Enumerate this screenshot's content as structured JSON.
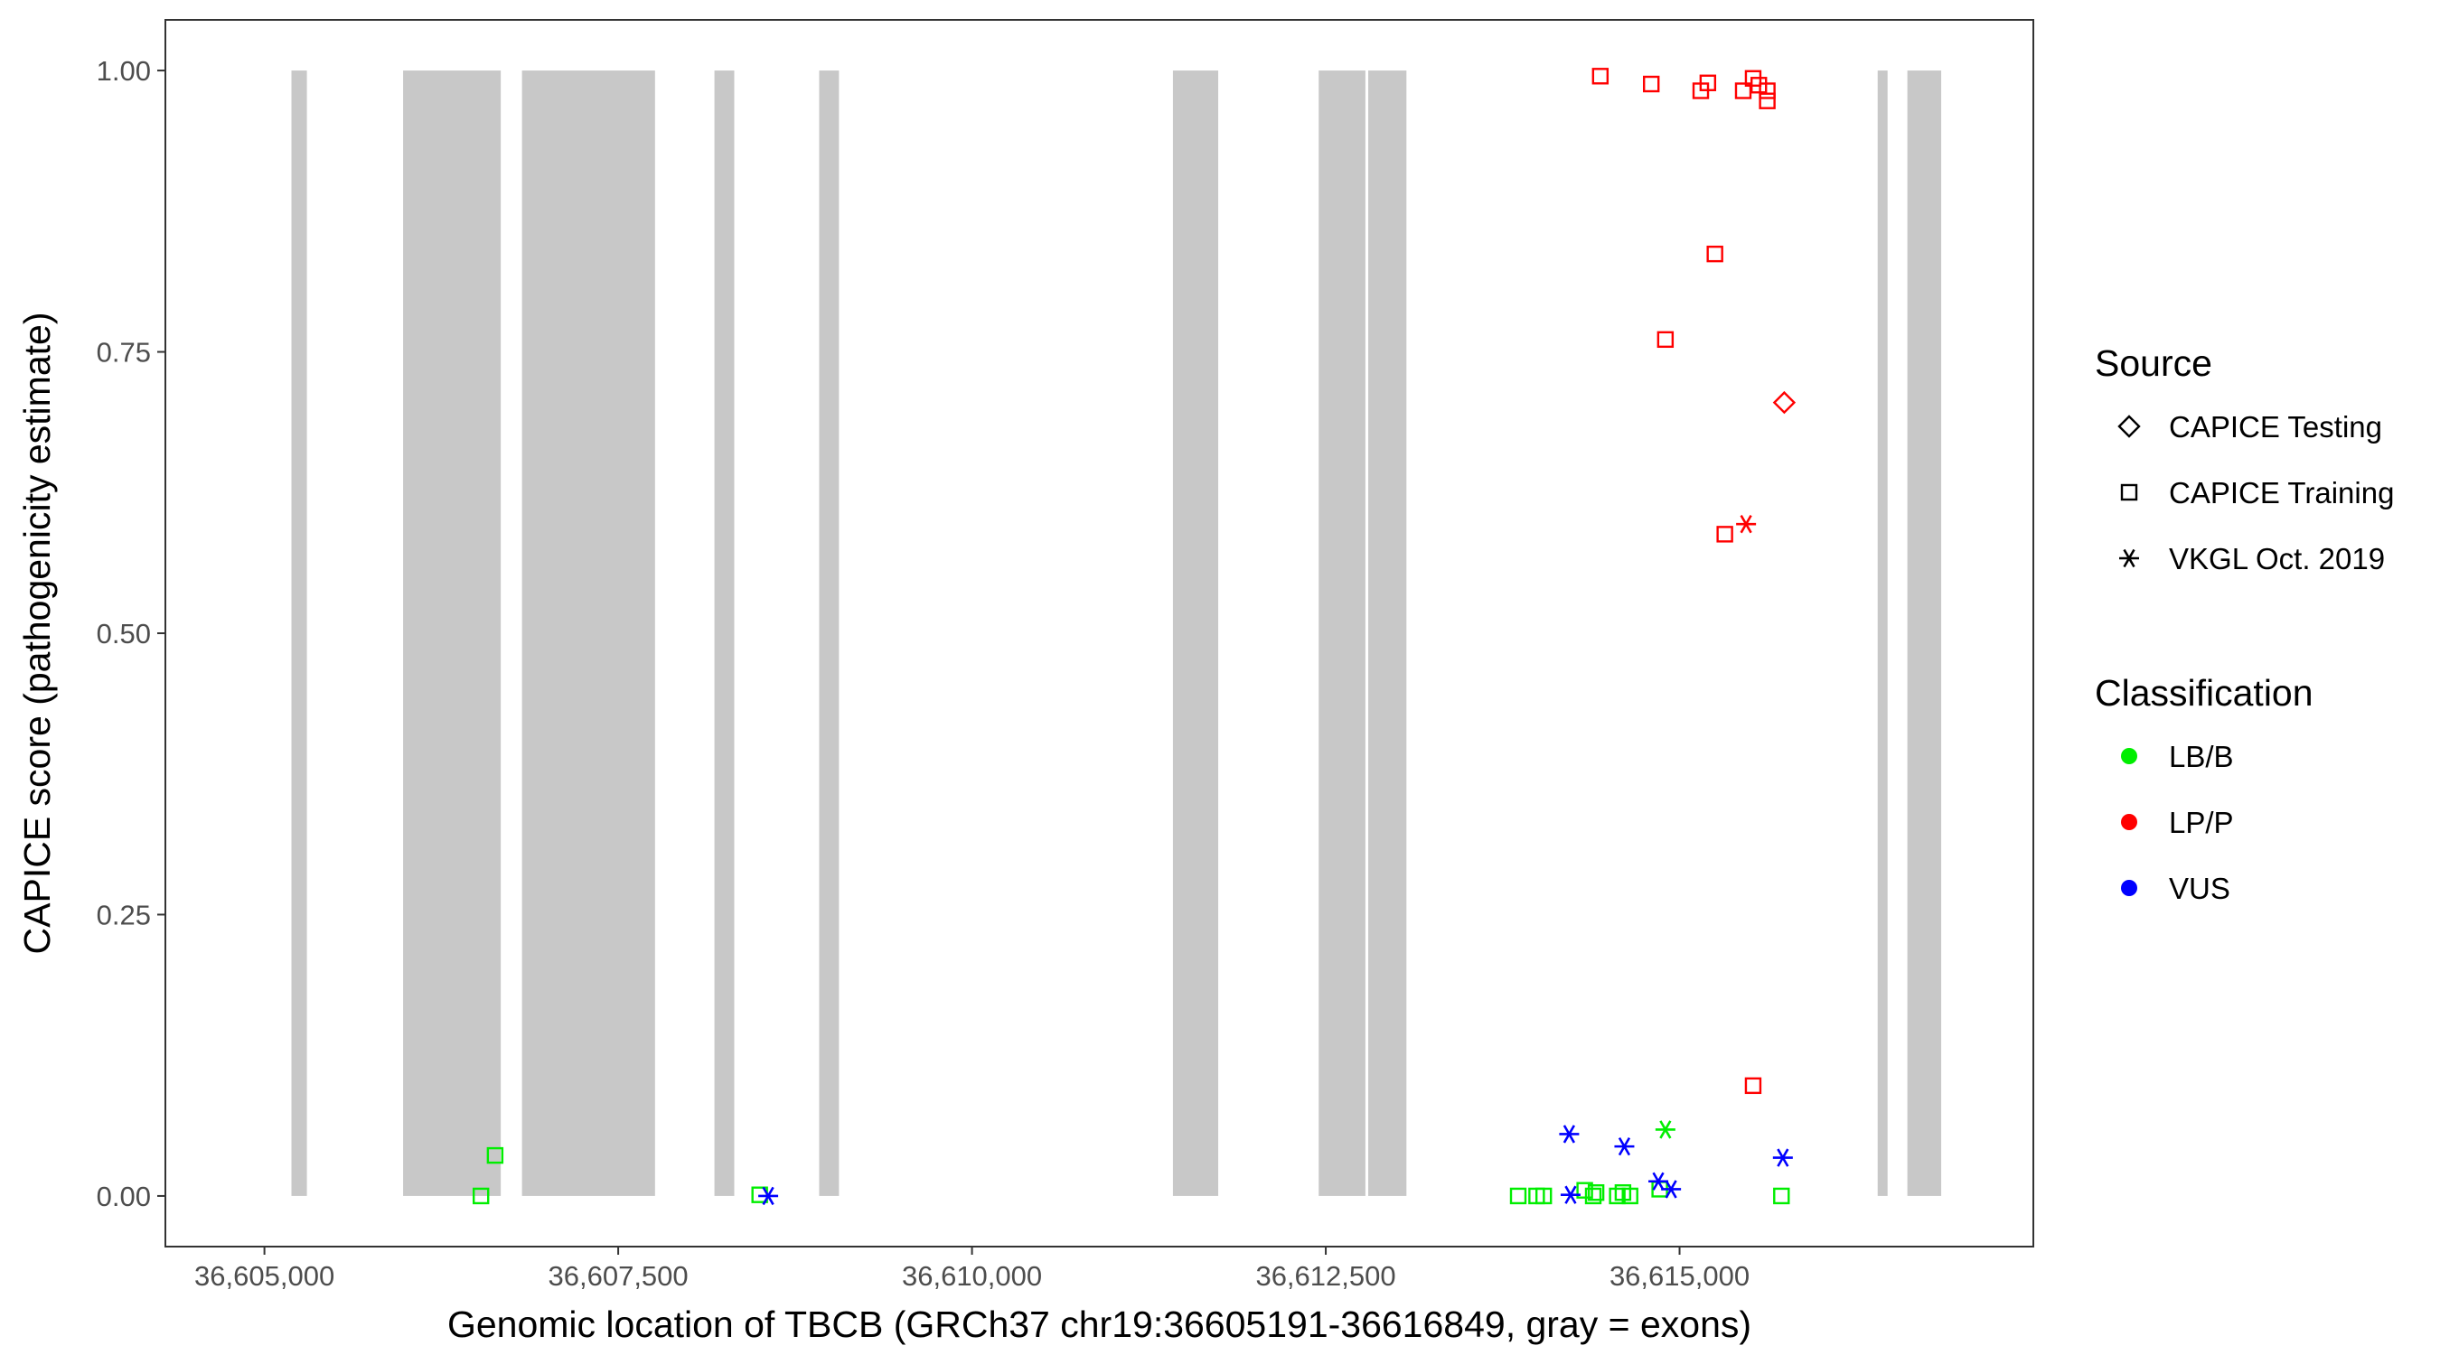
{
  "chart_data": {
    "type": "scatter",
    "title": "",
    "xlabel": "Genomic location of TBCB (GRCh37 chr19:36605191-36616849, gray = exons)",
    "ylabel": "CAPICE score (pathogenicity estimate)",
    "xlim": [
      36604300,
      36617500
    ],
    "ylim": [
      -0.045,
      1.045
    ],
    "x_ticks": [
      36605000,
      36607500,
      36610000,
      36612500,
      36615000
    ],
    "x_tick_labels": [
      "36,605,000",
      "36,607,500",
      "36,610,000",
      "36,612,500",
      "36,615,000"
    ],
    "y_ticks": [
      0,
      0.25,
      0.5,
      0.75,
      1
    ],
    "y_tick_labels": [
      "0.00",
      "0.25",
      "0.50",
      "0.75",
      "1.00"
    ],
    "grid": false,
    "exons": [
      [
        36605191,
        36605300
      ],
      [
        36605980,
        36606670
      ],
      [
        36606820,
        36607760
      ],
      [
        36608180,
        36608320
      ],
      [
        36608920,
        36609060
      ],
      [
        36611420,
        36611740
      ],
      [
        36612450,
        36612780
      ],
      [
        36612800,
        36613070
      ],
      [
        36616400,
        36616470
      ],
      [
        36616610,
        36616849
      ]
    ],
    "legend_source": {
      "title": "Source",
      "items": [
        {
          "label": "CAPICE Testing",
          "shape": "diamond"
        },
        {
          "label": "CAPICE Training",
          "shape": "square"
        },
        {
          "label": "VKGL Oct. 2019",
          "shape": "asterisk"
        }
      ]
    },
    "legend_classification": {
      "title": "Classification",
      "items": [
        {
          "label": "LB/B",
          "color": "#00ee00"
        },
        {
          "label": "LP/P",
          "color": "#ff0000"
        },
        {
          "label": "VUS",
          "color": "#0000ff"
        }
      ]
    },
    "legend_position": "right",
    "series": [
      {
        "name": "LP/P",
        "color": "#ff0000",
        "points": [
          {
            "x": 36614440,
            "y": 0.995,
            "shape": "square"
          },
          {
            "x": 36614800,
            "y": 0.988,
            "shape": "square"
          },
          {
            "x": 36615150,
            "y": 0.982,
            "shape": "square"
          },
          {
            "x": 36615200,
            "y": 0.989,
            "shape": "square"
          },
          {
            "x": 36615450,
            "y": 0.982,
            "shape": "square"
          },
          {
            "x": 36615520,
            "y": 0.993,
            "shape": "square"
          },
          {
            "x": 36615560,
            "y": 0.987,
            "shape": "square"
          },
          {
            "x": 36615620,
            "y": 0.982,
            "shape": "square"
          },
          {
            "x": 36615620,
            "y": 0.973,
            "shape": "square"
          },
          {
            "x": 36615250,
            "y": 0.837,
            "shape": "square"
          },
          {
            "x": 36614900,
            "y": 0.761,
            "shape": "square"
          },
          {
            "x": 36615740,
            "y": 0.705,
            "shape": "diamond"
          },
          {
            "x": 36615320,
            "y": 0.588,
            "shape": "square"
          },
          {
            "x": 36615470,
            "y": 0.597,
            "shape": "asterisk"
          },
          {
            "x": 36615520,
            "y": 0.098,
            "shape": "square"
          }
        ]
      },
      {
        "name": "LB/B",
        "color": "#00ee00",
        "points": [
          {
            "x": 36606530,
            "y": 0.0,
            "shape": "square"
          },
          {
            "x": 36606630,
            "y": 0.036,
            "shape": "square"
          },
          {
            "x": 36608500,
            "y": 0.001,
            "shape": "square"
          },
          {
            "x": 36614900,
            "y": 0.059,
            "shape": "asterisk"
          },
          {
            "x": 36613860,
            "y": 0.0,
            "shape": "square"
          },
          {
            "x": 36613990,
            "y": 0.0,
            "shape": "square"
          },
          {
            "x": 36614040,
            "y": 0.0,
            "shape": "square"
          },
          {
            "x": 36614330,
            "y": 0.005,
            "shape": "square"
          },
          {
            "x": 36614390,
            "y": 0.0,
            "shape": "square"
          },
          {
            "x": 36614410,
            "y": 0.003,
            "shape": "square"
          },
          {
            "x": 36614560,
            "y": 0.0,
            "shape": "square"
          },
          {
            "x": 36614600,
            "y": 0.003,
            "shape": "square"
          },
          {
            "x": 36614650,
            "y": 0.0,
            "shape": "square"
          },
          {
            "x": 36614860,
            "y": 0.006,
            "shape": "square"
          },
          {
            "x": 36615720,
            "y": 0.0,
            "shape": "square"
          }
        ]
      },
      {
        "name": "VUS",
        "color": "#0000ff",
        "points": [
          {
            "x": 36608560,
            "y": 0.0,
            "shape": "asterisk"
          },
          {
            "x": 36614220,
            "y": 0.055,
            "shape": "asterisk"
          },
          {
            "x": 36614230,
            "y": 0.001,
            "shape": "asterisk"
          },
          {
            "x": 36614610,
            "y": 0.044,
            "shape": "asterisk"
          },
          {
            "x": 36614850,
            "y": 0.013,
            "shape": "asterisk"
          },
          {
            "x": 36614940,
            "y": 0.006,
            "shape": "asterisk"
          },
          {
            "x": 36615730,
            "y": 0.034,
            "shape": "asterisk"
          }
        ]
      }
    ]
  }
}
